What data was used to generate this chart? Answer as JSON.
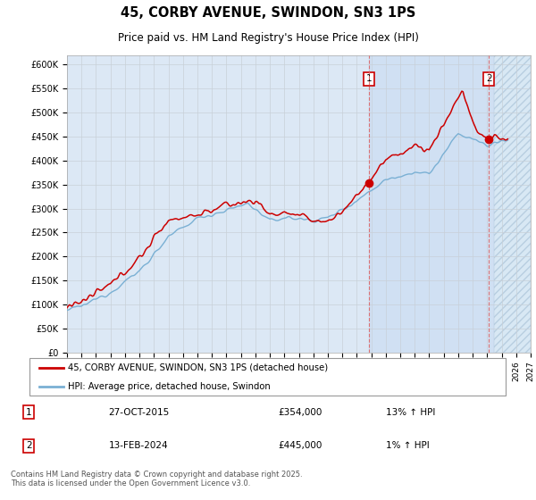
{
  "title": "45, CORBY AVENUE, SWINDON, SN3 1PS",
  "subtitle": "Price paid vs. HM Land Registry's House Price Index (HPI)",
  "ylim": [
    0,
    620000
  ],
  "yticks": [
    0,
    50000,
    100000,
    150000,
    200000,
    250000,
    300000,
    350000,
    400000,
    450000,
    500000,
    550000,
    600000
  ],
  "ytick_labels": [
    "£0",
    "£50K",
    "£100K",
    "£150K",
    "£200K",
    "£250K",
    "£300K",
    "£350K",
    "£400K",
    "£450K",
    "£500K",
    "£550K",
    "£600K"
  ],
  "hpi_color": "#7ab0d4",
  "price_color": "#cc0000",
  "vline_color": "#dd6666",
  "background_color": "#dce8f5",
  "hatch_color": "#c8d8e8",
  "sale1_year": 2015.82,
  "sale1_price": 354000,
  "sale2_year": 2024.12,
  "sale2_price": 445000,
  "shade_start": 2015.82,
  "hatch_start": 2024.5,
  "annotation1": {
    "text_date": "27-OCT-2015",
    "text_price": "£354,000",
    "text_hpi": "13% ↑ HPI"
  },
  "annotation2": {
    "text_date": "13-FEB-2024",
    "text_price": "£445,000",
    "text_hpi": "1% ↑ HPI"
  },
  "legend_line1": "45, CORBY AVENUE, SWINDON, SN3 1PS (detached house)",
  "legend_line2": "HPI: Average price, detached house, Swindon",
  "footer": "Contains HM Land Registry data © Crown copyright and database right 2025.\nThis data is licensed under the Open Government Licence v3.0.",
  "xmin": 1995.0,
  "xmax": 2027.0
}
